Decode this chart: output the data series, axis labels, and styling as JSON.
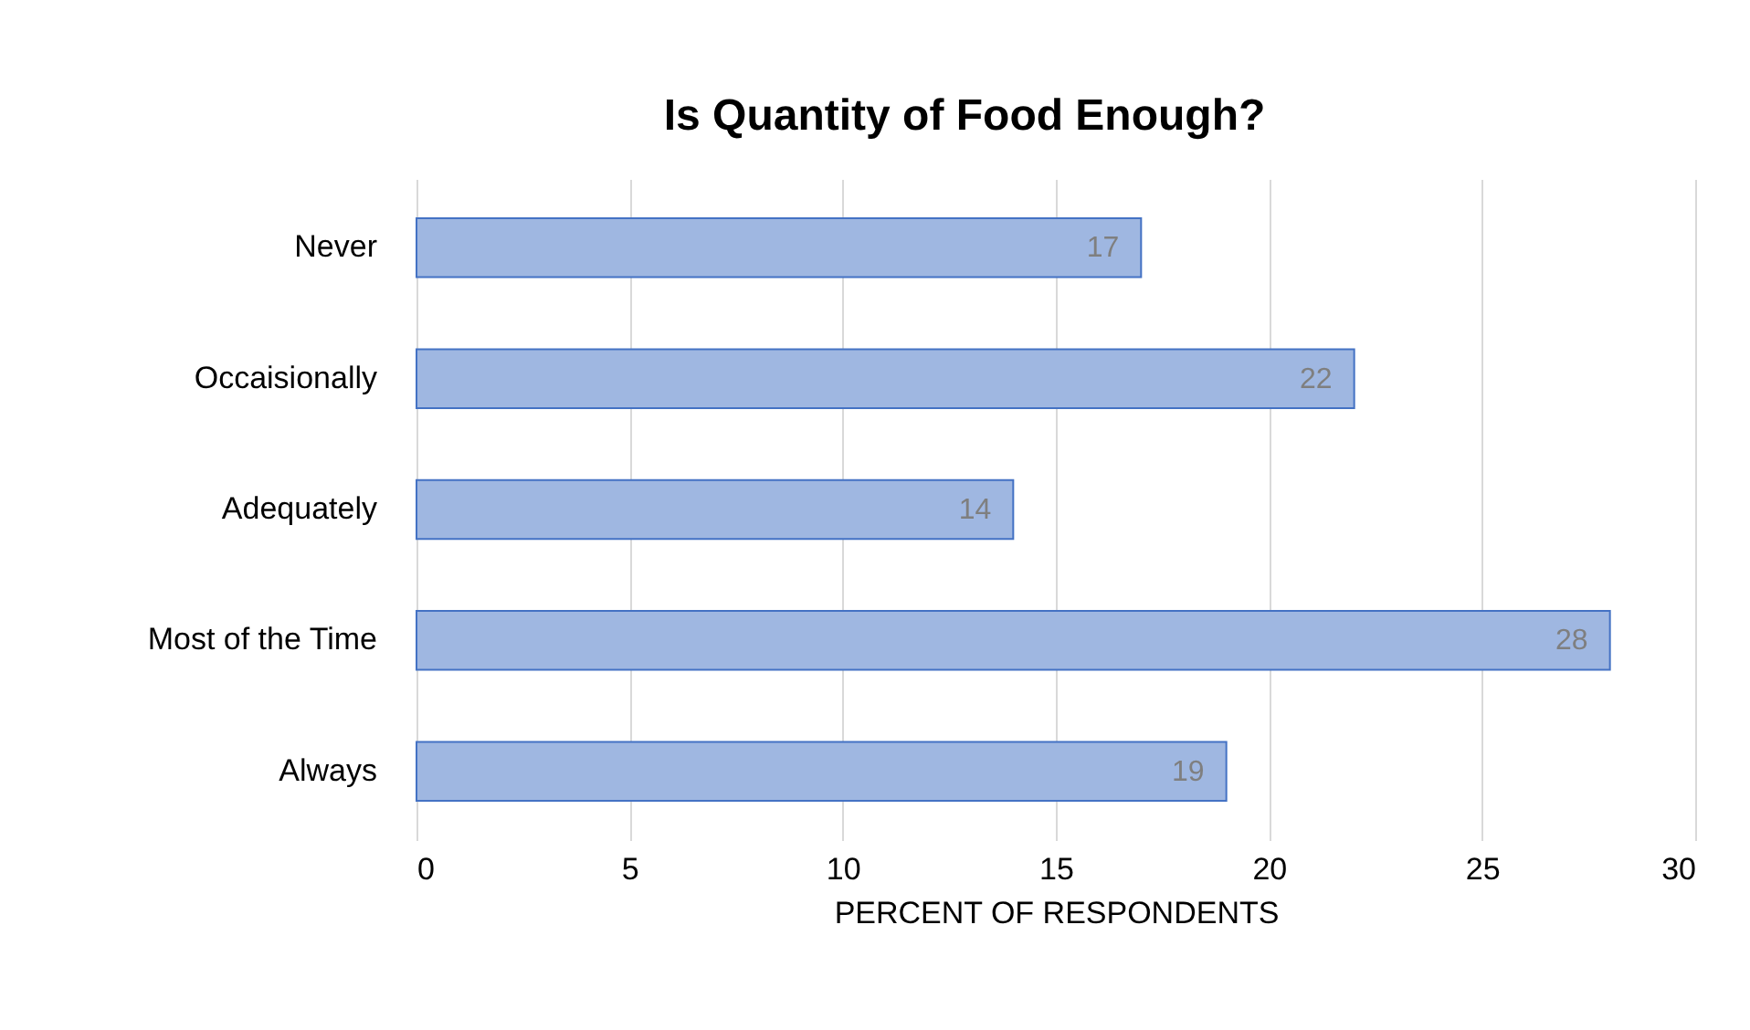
{
  "chart_data": {
    "type": "bar",
    "orientation": "horizontal",
    "title": "Is Quantity of Food Enough?",
    "xlabel": "PERCENT OF RESPONDENTS",
    "categories": [
      "Never",
      "Occaisionally",
      "Adequately",
      "Most of the Time",
      "Always"
    ],
    "values": [
      17,
      22,
      14,
      28,
      19
    ],
    "color": "#9fb7e1",
    "xlim": [
      0,
      30
    ],
    "xticks": [
      0,
      5,
      10,
      15,
      20,
      25,
      30
    ],
    "grid": "x",
    "data_labels": true
  }
}
